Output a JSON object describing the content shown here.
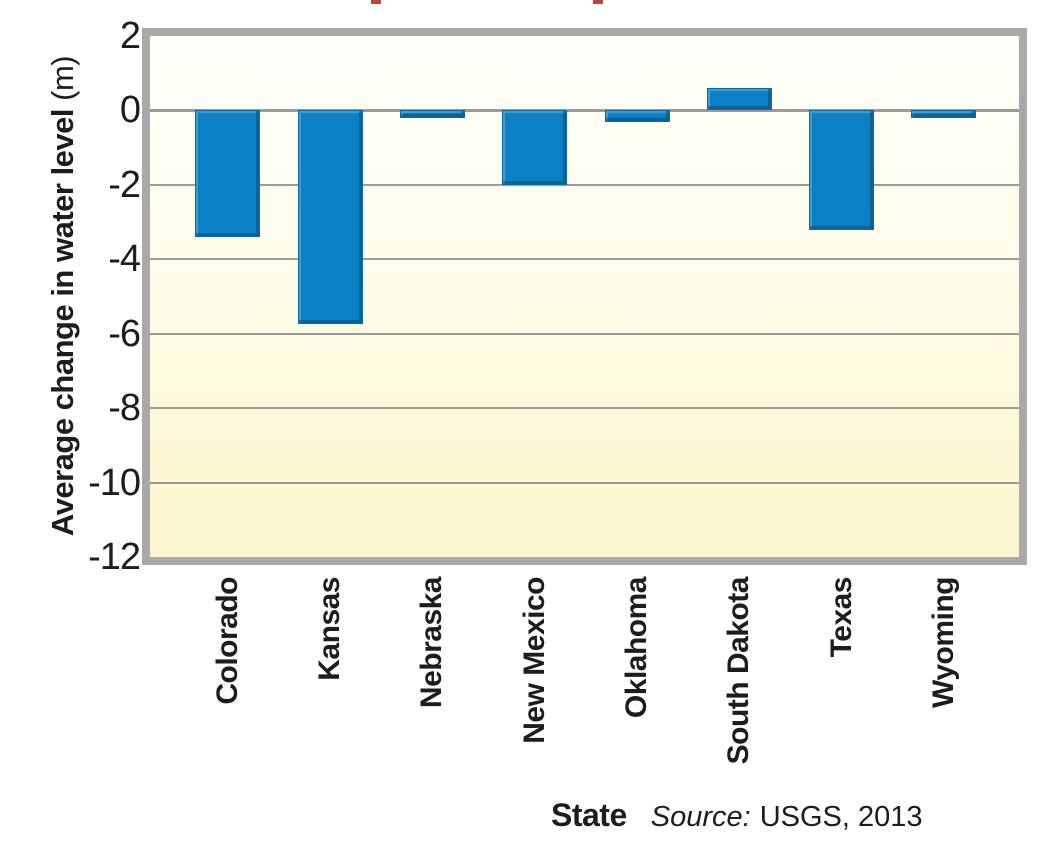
{
  "chart_data": {
    "type": "bar",
    "categories": [
      "Colorado",
      "Kansas",
      "Nebraska",
      "New Mexico",
      "Oklahoma",
      "South Dakota",
      "Texas",
      "Wyoming"
    ],
    "values": [
      -3.4,
      -5.75,
      -0.2,
      -2.0,
      -0.3,
      0.6,
      -3.2,
      -0.2
    ],
    "ylabel_bold": "Average change in water level",
    "ylabel_unit": "(m)",
    "xlabel": "State",
    "source_label": "Source:",
    "source_value": "USGS, 2013",
    "yticks": [
      2,
      0,
      -2,
      -4,
      -6,
      -8,
      -10,
      -12
    ],
    "ylim": [
      2,
      -12
    ],
    "grid": true,
    "legend": "none",
    "bar_color": "#0a80c5",
    "plot_bg_top": "#fffffb",
    "plot_bg_bottom": "#fbf6cc",
    "frame_color": "#a9a9a9",
    "gridline_color": "#9a9a9a",
    "text_color": "#1d1d1b",
    "cropped_title_color": "#b5483e"
  }
}
